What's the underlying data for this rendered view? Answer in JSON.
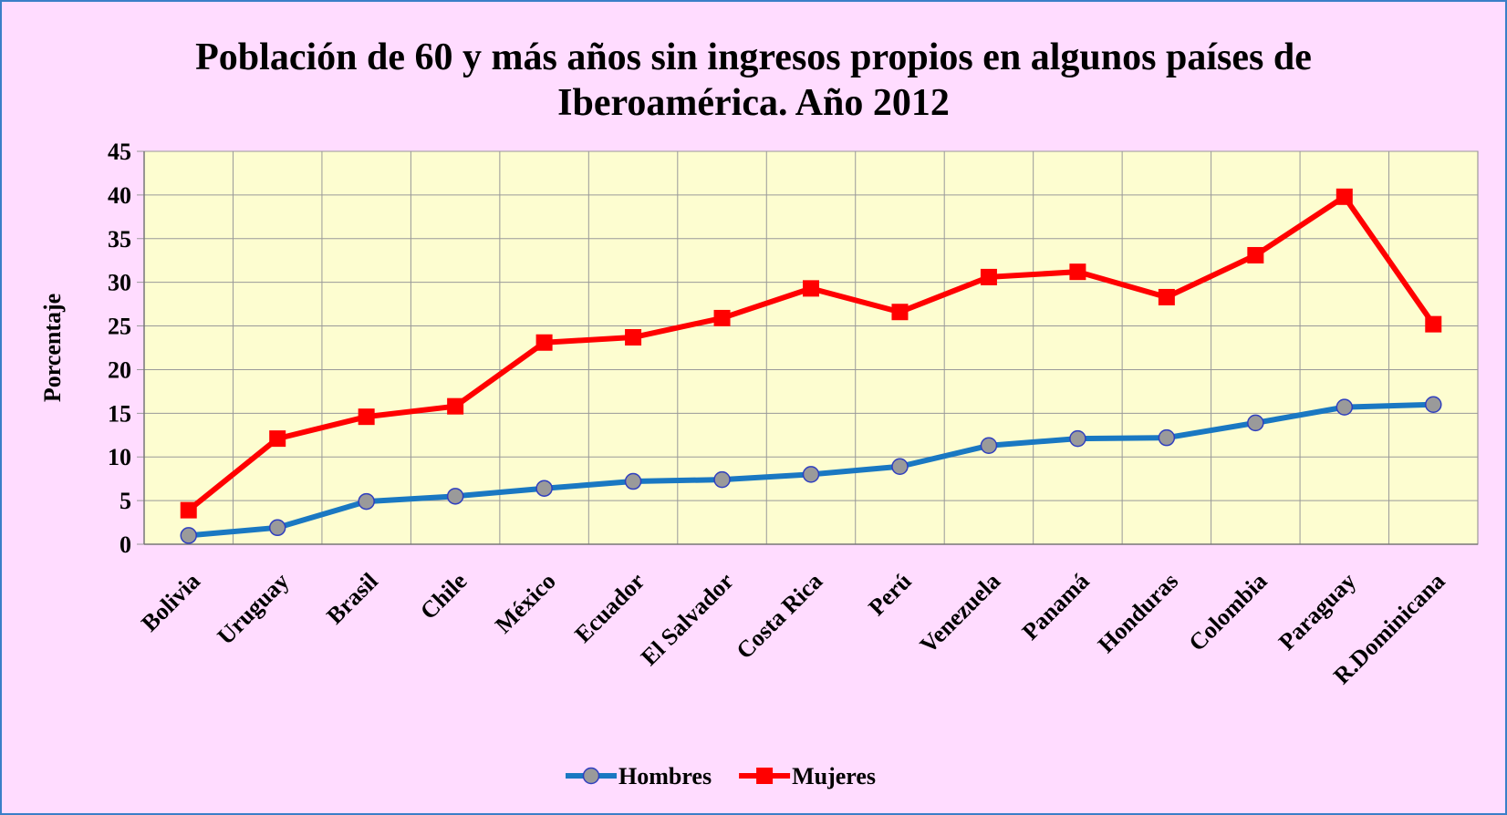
{
  "chart_data": {
    "type": "line",
    "title": "Población de 60 y más años sin ingresos propios en algunos países de Iberoamérica. Año 2012",
    "y_label": "Porcentaje",
    "categories": [
      "Bolivia",
      "Uruguay",
      "Brasil",
      "Chile",
      "México",
      "Ecuador",
      "El Salvador",
      "Costa Rica",
      "Perú",
      "Venezuela",
      "Panamá",
      "Honduras",
      "Colombia",
      "Paraguay",
      "R.Dominicana"
    ],
    "series": [
      {
        "name": "Hombres",
        "color": "#1a78c2",
        "marker_color": "#9a9a9a",
        "marker": "circle",
        "values": [
          1.0,
          1.9,
          4.9,
          5.5,
          6.4,
          7.2,
          7.4,
          8.0,
          8.9,
          11.3,
          12.1,
          12.2,
          13.9,
          15.7,
          16.0
        ]
      },
      {
        "name": "Mujeres",
        "color": "#ff0000",
        "marker_color": "#ff0000",
        "marker": "square",
        "values": [
          3.9,
          12.1,
          14.6,
          15.8,
          23.1,
          23.7,
          25.9,
          29.3,
          26.6,
          30.6,
          31.2,
          28.3,
          33.1,
          39.8,
          25.2
        ]
      }
    ],
    "ylim": [
      0,
      45
    ],
    "yticks": [
      0,
      5,
      10,
      15,
      20,
      25,
      30,
      35,
      40,
      45
    ],
    "grid": true,
    "legend": "bottom"
  }
}
